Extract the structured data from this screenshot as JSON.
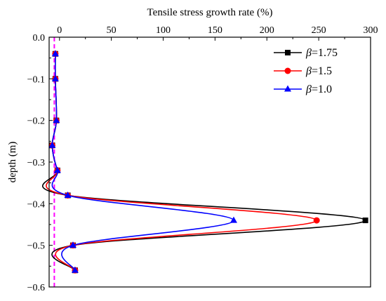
{
  "chart_data": {
    "type": "line",
    "xlabel": "Tensile stress growth rate  (%)",
    "ylabel": "depth  (m)",
    "xlim": [
      -10,
      300
    ],
    "ylim": [
      -0.6,
      0.0
    ],
    "x_axis_position": "top",
    "x_ticks": [
      0,
      50,
      100,
      150,
      200,
      250,
      300
    ],
    "x_tick_labels": [
      "0",
      "50",
      "100",
      "150",
      "200",
      "250",
      "300"
    ],
    "y_ticks": [
      0.0,
      -0.1,
      -0.2,
      -0.3,
      -0.4,
      -0.5,
      -0.6
    ],
    "y_tick_labels": [
      "0.0",
      "−0.1",
      "−0.2",
      "−0.3",
      "−0.4",
      "−0.5",
      "−0.6"
    ],
    "grid": false,
    "legend_position": "top-right",
    "legend_symbol": "β",
    "reference_line": {
      "x": -5,
      "style": "dashed",
      "color": "#ff00ff"
    },
    "series": [
      {
        "name": "=1.75",
        "color": "#000000",
        "marker": "square",
        "depth": [
          -0.04,
          -0.1,
          -0.2,
          -0.26,
          -0.32,
          -0.38,
          -0.44,
          -0.5,
          -0.56
        ],
        "rate": [
          -4,
          -4,
          -3,
          -7,
          -2,
          8,
          295,
          13,
          15
        ]
      },
      {
        "name": "=1.5",
        "color": "#ff0000",
        "marker": "circle",
        "depth": [
          -0.04,
          -0.1,
          -0.2,
          -0.26,
          -0.32,
          -0.38,
          -0.44,
          -0.5,
          -0.56
        ],
        "rate": [
          -4,
          -4,
          -3,
          -7,
          -2,
          8,
          248,
          13,
          15
        ]
      },
      {
        "name": "=1.0",
        "color": "#0000ff",
        "marker": "triangle",
        "depth": [
          -0.04,
          -0.1,
          -0.2,
          -0.26,
          -0.32,
          -0.38,
          -0.44,
          -0.5,
          -0.56
        ],
        "rate": [
          -4,
          -4,
          -3,
          -7,
          -2,
          8,
          168,
          13,
          15
        ]
      }
    ]
  }
}
